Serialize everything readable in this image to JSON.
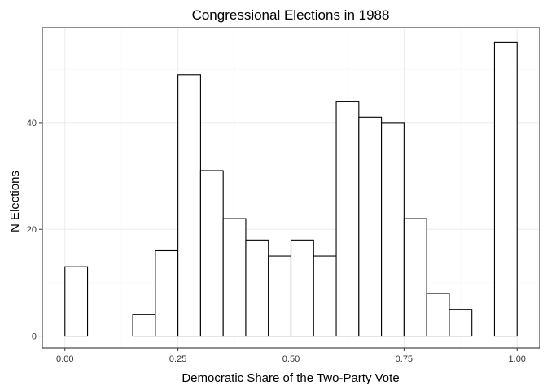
{
  "chart_data": {
    "type": "bar",
    "title": "Congressional Elections in 1988",
    "xlabel": "Democratic Share of the Two-Party Vote",
    "ylabel": "N Elections",
    "bin_width": 0.05,
    "bins": [
      {
        "x0": 0.0,
        "x1": 0.05,
        "count": 13
      },
      {
        "x0": 0.05,
        "x1": 0.1,
        "count": 0
      },
      {
        "x0": 0.1,
        "x1": 0.15,
        "count": 0
      },
      {
        "x0": 0.15,
        "x1": 0.2,
        "count": 4
      },
      {
        "x0": 0.2,
        "x1": 0.25,
        "count": 16
      },
      {
        "x0": 0.25,
        "x1": 0.3,
        "count": 49
      },
      {
        "x0": 0.3,
        "x1": 0.35,
        "count": 31
      },
      {
        "x0": 0.35,
        "x1": 0.4,
        "count": 22
      },
      {
        "x0": 0.4,
        "x1": 0.45,
        "count": 18
      },
      {
        "x0": 0.45,
        "x1": 0.5,
        "count": 15
      },
      {
        "x0": 0.5,
        "x1": 0.55,
        "count": 18
      },
      {
        "x0": 0.55,
        "x1": 0.6,
        "count": 15
      },
      {
        "x0": 0.6,
        "x1": 0.65,
        "count": 44
      },
      {
        "x0": 0.65,
        "x1": 0.7,
        "count": 41
      },
      {
        "x0": 0.7,
        "x1": 0.75,
        "count": 40
      },
      {
        "x0": 0.75,
        "x1": 0.8,
        "count": 22
      },
      {
        "x0": 0.8,
        "x1": 0.85,
        "count": 8
      },
      {
        "x0": 0.85,
        "x1": 0.9,
        "count": 5
      },
      {
        "x0": 0.9,
        "x1": 0.95,
        "count": 0
      },
      {
        "x0": 0.95,
        "x1": 1.0,
        "count": 55
      }
    ],
    "xlim": [
      -0.05,
      1.05
    ],
    "ylim": [
      -2.2,
      57.8
    ],
    "x_ticks": [
      0,
      0.25,
      0.5,
      0.75,
      1
    ],
    "x_tick_labels": [
      "0.00",
      "0.25",
      "0.50",
      "0.75",
      "1.00"
    ],
    "y_ticks": [
      0,
      20,
      40
    ],
    "y_tick_labels": [
      "0",
      "20",
      "40"
    ],
    "grid": true,
    "bar_fill": "#ffffff",
    "bar_stroke": "#000000"
  }
}
